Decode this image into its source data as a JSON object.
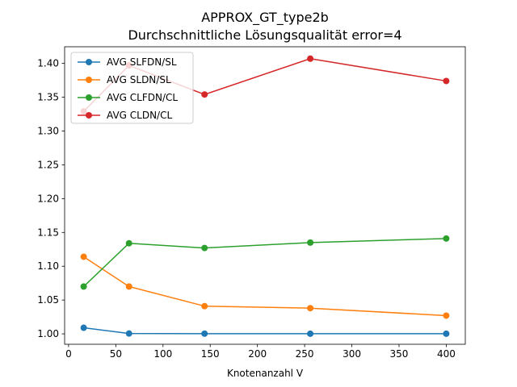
{
  "chart_data": {
    "type": "line",
    "title": "APPROX_GT_type2b",
    "subtitle": "Durchschnittliche Lösungsqualität error=4",
    "xlabel": "Knotenanzahl V",
    "ylabel": "",
    "x": [
      16,
      64,
      144,
      256,
      400
    ],
    "xlim": [
      -4.2,
      420.2
    ],
    "ylim": [
      0.9846,
      1.4246
    ],
    "xticks": [
      0,
      50,
      100,
      150,
      200,
      250,
      300,
      350,
      400
    ],
    "yticks": [
      "1.00",
      "1.05",
      "1.10",
      "1.15",
      "1.20",
      "1.25",
      "1.30",
      "1.35",
      "1.40"
    ],
    "grid": false,
    "legend": "top-left",
    "series": [
      {
        "name": "AVG SLFDN/SL",
        "color": "#1f77b4",
        "values": [
          1.009,
          1.0005,
          1.0003,
          1.0002,
          1.0002
        ]
      },
      {
        "name": "AVG SLDN/SL",
        "color": "#ff7f0e",
        "values": [
          1.114,
          1.07,
          1.041,
          1.038,
          1.027
        ]
      },
      {
        "name": "AVG CLFDN/CL",
        "color": "#2ca02c",
        "values": [
          1.07,
          1.134,
          1.127,
          1.135,
          1.141
        ]
      },
      {
        "name": "AVG CLDN/CL",
        "color": "#d62728",
        "values": [
          1.329,
          1.397,
          1.354,
          1.407,
          1.374
        ]
      }
    ]
  }
}
